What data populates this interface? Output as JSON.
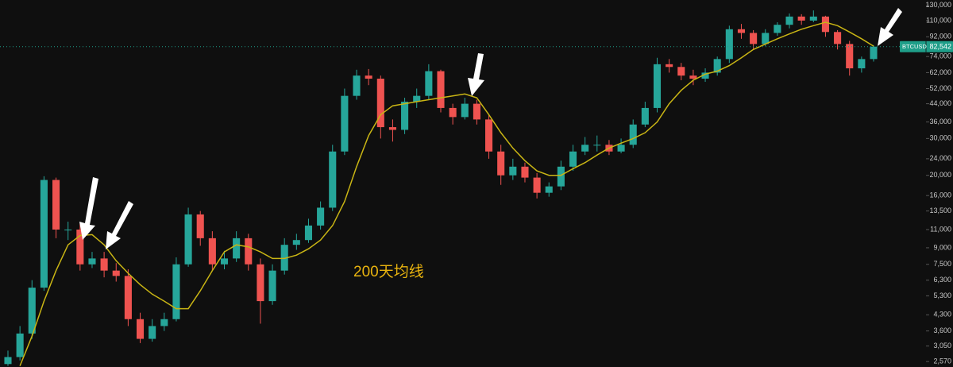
{
  "chart_data": {
    "type": "candlestick",
    "log": true,
    "grid": false,
    "up_color": "#26a69a",
    "down_color": "#ef5350",
    "open": [
      2500,
      2700,
      3500,
      5800,
      19000,
      11000,
      11000,
      7500,
      8000,
      7000,
      6600,
      4100,
      3300,
      3800,
      4100,
      7500,
      13000,
      10000,
      7500,
      8000,
      10000,
      7500,
      5000,
      7000,
      9300,
      9800,
      11500,
      14000,
      26000,
      48000,
      60000,
      58000,
      34000,
      33000,
      45000,
      48000,
      63000,
      42000,
      38000,
      44000,
      37000,
      26000,
      20000,
      22000,
      19500,
      16500,
      17700,
      22000,
      26000,
      28000,
      28000,
      26000,
      28000,
      35000,
      42000,
      68000,
      66000,
      60000,
      58000,
      62000,
      72000,
      100000,
      96000,
      85000,
      96000,
      105000,
      115000,
      110000,
      115000,
      97000,
      85000,
      65000,
      72000
    ],
    "high": [
      2900,
      3800,
      6300,
      19800,
      19500,
      12000,
      11800,
      8600,
      8600,
      7600,
      7100,
      4400,
      4100,
      4400,
      8100,
      14000,
      13500,
      10800,
      8700,
      10800,
      10500,
      8000,
      7500,
      10000,
      10500,
      12400,
      15000,
      28000,
      52000,
      64000,
      64500,
      60000,
      37000,
      47000,
      52000,
      68000,
      64000,
      44000,
      47000,
      46000,
      39000,
      28000,
      24000,
      23000,
      20500,
      18500,
      23500,
      28000,
      30500,
      31000,
      29500,
      30000,
      37000,
      45000,
      73000,
      72000,
      69000,
      64000,
      65000,
      74000,
      104000,
      106000,
      99000,
      100000,
      108000,
      119000,
      118000,
      123000,
      116000,
      99000,
      88000,
      74000,
      84000
    ],
    "low": [
      2450,
      2600,
      3300,
      5600,
      10000,
      9800,
      7000,
      7200,
      6500,
      6200,
      3800,
      3150,
      3200,
      3600,
      4000,
      7300,
      9200,
      7000,
      7100,
      7700,
      7000,
      3900,
      4800,
      6700,
      8800,
      9500,
      11000,
      13500,
      25000,
      46000,
      54000,
      30000,
      29000,
      31500,
      42000,
      46000,
      40000,
      35000,
      37000,
      35000,
      24000,
      18000,
      19000,
      18500,
      15500,
      15800,
      17000,
      21000,
      25000,
      26000,
      25000,
      25500,
      27000,
      34000,
      40000,
      62000,
      57000,
      54000,
      56000,
      60000,
      69000,
      90000,
      80000,
      83000,
      93000,
      101000,
      105000,
      108000,
      92000,
      80000,
      60000,
      62000,
      70000
    ],
    "close": [
      2700,
      3500,
      5800,
      19000,
      11000,
      11000,
      7500,
      8000,
      7000,
      6600,
      4100,
      3300,
      3800,
      4100,
      7500,
      13000,
      10000,
      7500,
      8000,
      10000,
      7500,
      5000,
      7000,
      9300,
      9800,
      11500,
      14000,
      26000,
      48000,
      60000,
      58000,
      34000,
      33000,
      45000,
      48000,
      63000,
      42000,
      38000,
      44000,
      37000,
      26000,
      20000,
      22000,
      19500,
      16500,
      17700,
      22000,
      26000,
      28000,
      28000,
      26000,
      28000,
      35000,
      42000,
      68000,
      66000,
      60000,
      58000,
      62000,
      72000,
      100000,
      96000,
      85000,
      96000,
      105000,
      115000,
      110000,
      115000,
      97000,
      85000,
      65000,
      72000,
      82542
    ],
    "ma": {
      "color": "#c9b514",
      "values": [
        null,
        2450,
        3400,
        5000,
        7000,
        9300,
        10300,
        10400,
        9300,
        7800,
        6800,
        6000,
        5400,
        5000,
        4600,
        4600,
        5600,
        7000,
        8600,
        9300,
        9100,
        8600,
        8000,
        8000,
        8300,
        8900,
        9800,
        11500,
        15000,
        22000,
        31000,
        39000,
        43000,
        44000,
        45000,
        46000,
        47000,
        48000,
        49000,
        47000,
        39000,
        32000,
        27000,
        23500,
        21000,
        20000,
        20000,
        21500,
        23000,
        25000,
        27000,
        28500,
        30000,
        32000,
        36000,
        44000,
        51000,
        57000,
        61000,
        63000,
        67000,
        73000,
        80000,
        85000,
        90000,
        95000,
        100000,
        104000,
        108000,
        104000,
        97000,
        90000,
        83000
      ]
    },
    "annotation": "200天均线",
    "annotation_color": "#e8b30f",
    "last_price": {
      "symbol": "BTCUSD",
      "value": 82542,
      "label": "82,542",
      "color": "#1f9e89"
    },
    "ylim": [
      2420,
      138000
    ],
    "yticks": [
      {
        "value": 130000,
        "label": "130,000"
      },
      {
        "value": 110000,
        "label": "110,000"
      },
      {
        "value": 92000,
        "label": "92,000"
      },
      {
        "value": 74000,
        "label": "74,000"
      },
      {
        "value": 62000,
        "label": "62,000"
      },
      {
        "value": 52000,
        "label": "52,000"
      },
      {
        "value": 44000,
        "label": "44,000"
      },
      {
        "value": 36000,
        "label": "36,000"
      },
      {
        "value": 30000,
        "label": "30,000"
      },
      {
        "value": 24000,
        "label": "24,000"
      },
      {
        "value": 20000,
        "label": "20,000"
      },
      {
        "value": 16000,
        "label": "16,000"
      },
      {
        "value": 13500,
        "label": "13,500"
      },
      {
        "value": 11000,
        "label": "11,000"
      },
      {
        "value": 9000,
        "label": "9,000"
      },
      {
        "value": 7500,
        "label": "7,500"
      },
      {
        "value": 6300,
        "label": "6,300"
      },
      {
        "value": 5300,
        "label": "5,300"
      },
      {
        "value": 4300,
        "label": "4,300"
      },
      {
        "value": 3600,
        "label": "3,600"
      },
      {
        "value": 3050,
        "label": "3,050"
      },
      {
        "value": 2570,
        "label": "2,570"
      }
    ]
  }
}
